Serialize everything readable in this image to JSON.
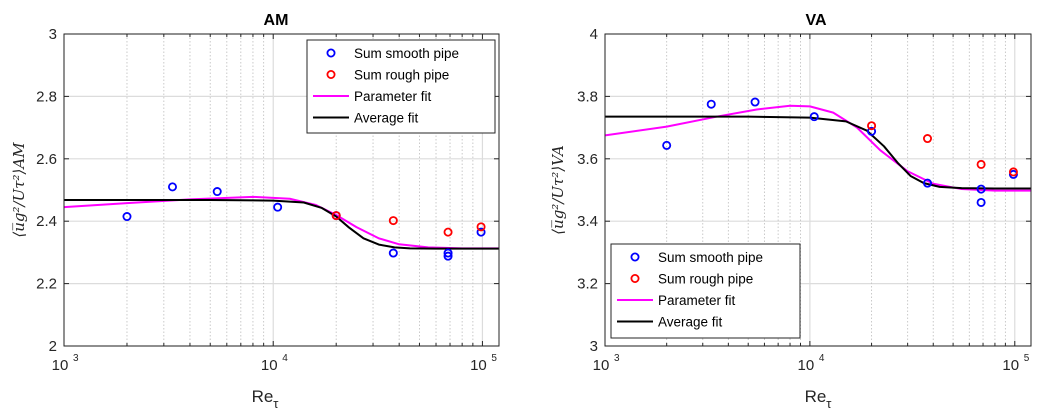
{
  "chart_data": [
    {
      "type": "scatter",
      "title": "AM",
      "xlabel": "Re",
      "xlabel_sub": "τ",
      "ylabel": "⟨u̅g²/Uτ²⟩AM",
      "xscale": "log",
      "xlim": [
        1000,
        120000
      ],
      "ylim": [
        2,
        3
      ],
      "yticks": [
        "2",
        "2.2",
        "2.4",
        "2.6",
        "2.8",
        "3"
      ],
      "xtick_base": "10",
      "xticks_exp": [
        "3",
        "4",
        "5"
      ],
      "grid": true,
      "legend_position": "top-right",
      "series": [
        {
          "name": "Sum smooth pipe",
          "kind": "markers",
          "color": "#0000ff",
          "x": [
            2000,
            3300,
            5400,
            10500,
            20000,
            37500,
            68500,
            68500,
            98500
          ],
          "y": [
            2.415,
            2.51,
            2.495,
            2.445,
            2.418,
            2.298,
            2.298,
            2.288,
            2.365
          ]
        },
        {
          "name": "Sum rough pipe",
          "kind": "markers",
          "color": "#ff0000",
          "x": [
            20000,
            37500,
            68500,
            98500
          ],
          "y": [
            2.418,
            2.402,
            2.365,
            2.382
          ]
        },
        {
          "name": "Parameter fit",
          "kind": "line",
          "color": "#ff00ff",
          "x": [
            1000,
            2000,
            4000,
            8000,
            12000,
            16000,
            20000,
            25000,
            32000,
            40000,
            55000,
            80000,
            120000
          ],
          "y": [
            2.445,
            2.458,
            2.47,
            2.478,
            2.472,
            2.452,
            2.42,
            2.381,
            2.345,
            2.326,
            2.316,
            2.313,
            2.313
          ]
        },
        {
          "name": "Average fit",
          "kind": "line",
          "color": "#000000",
          "x": [
            1000,
            5000,
            10000,
            14000,
            17000,
            20000,
            23000,
            27000,
            32000,
            38000,
            45000,
            60000,
            120000
          ],
          "y": [
            2.468,
            2.468,
            2.466,
            2.46,
            2.443,
            2.415,
            2.38,
            2.345,
            2.325,
            2.316,
            2.313,
            2.312,
            2.312
          ]
        }
      ]
    },
    {
      "type": "scatter",
      "title": "VA",
      "xlabel": "Re",
      "xlabel_sub": "τ",
      "ylabel": "⟨u̅g²/Uτ²⟩VA",
      "xscale": "log",
      "xlim": [
        1000,
        120000
      ],
      "ylim": [
        3,
        4
      ],
      "yticks": [
        "3",
        "3.2",
        "3.4",
        "3.6",
        "3.8",
        "4"
      ],
      "xtick_base": "10",
      "xticks_exp": [
        "3",
        "4",
        "5"
      ],
      "grid": true,
      "legend_position": "bottom-left",
      "series": [
        {
          "name": "Sum smooth pipe",
          "kind": "markers",
          "color": "#0000ff",
          "x": [
            2000,
            3300,
            5400,
            10500,
            20000,
            37500,
            68500,
            68500,
            98500
          ],
          "y": [
            3.643,
            3.775,
            3.782,
            3.735,
            3.688,
            3.522,
            3.503,
            3.46,
            3.55
          ]
        },
        {
          "name": "Sum rough pipe",
          "kind": "markers",
          "color": "#ff0000",
          "x": [
            20000,
            37500,
            68500,
            98500
          ],
          "y": [
            3.706,
            3.665,
            3.582,
            3.558
          ]
        },
        {
          "name": "Parameter fit",
          "kind": "line",
          "color": "#ff00ff",
          "x": [
            1000,
            2000,
            3500,
            5500,
            8000,
            10000,
            13000,
            17000,
            22000,
            30000,
            40000,
            55000,
            80000,
            120000
          ],
          "y": [
            3.675,
            3.703,
            3.735,
            3.758,
            3.77,
            3.768,
            3.748,
            3.7,
            3.628,
            3.56,
            3.52,
            3.503,
            3.498,
            3.498
          ]
        },
        {
          "name": "Average fit",
          "kind": "line",
          "color": "#000000",
          "x": [
            1000,
            5000,
            10000,
            15000,
            19000,
            23000,
            27000,
            31000,
            36000,
            43000,
            55000,
            80000,
            120000
          ],
          "y": [
            3.735,
            3.735,
            3.732,
            3.72,
            3.69,
            3.64,
            3.585,
            3.545,
            3.522,
            3.51,
            3.506,
            3.505,
            3.505
          ]
        }
      ]
    }
  ]
}
